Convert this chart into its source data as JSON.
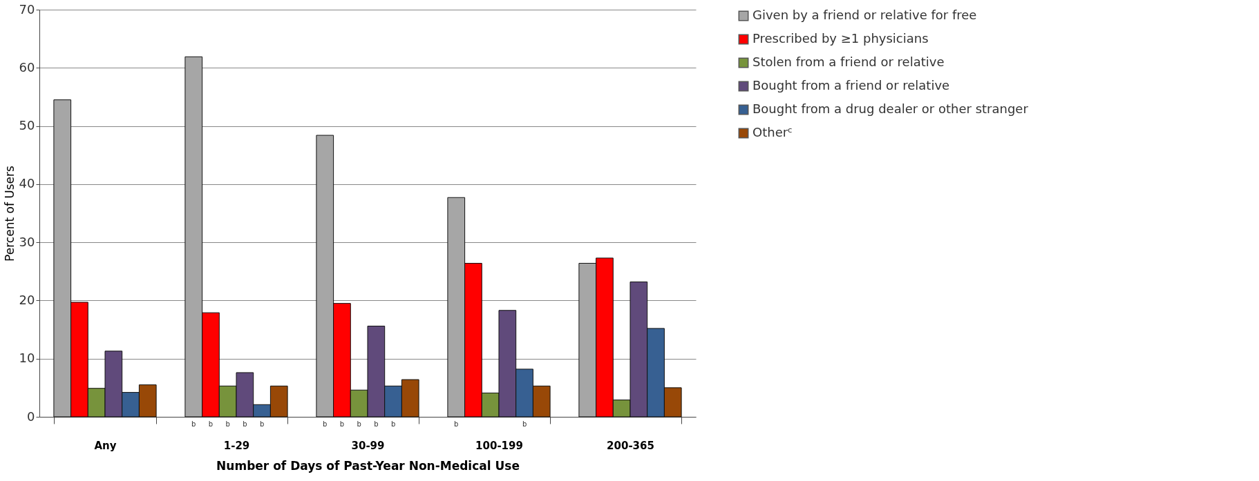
{
  "chart_data": {
    "type": "bar",
    "xlabel": "Number of Days of Past-Year Non-Medical Use",
    "ylabel": "Percent of Users",
    "categories": [
      "Any",
      "1-29",
      "30-99",
      "100-199",
      "200-365"
    ],
    "series": [
      {
        "name": "Given by a friend or relative for free",
        "color": "#a6a6a6",
        "values": [
          54.5,
          61.9,
          48.4,
          37.7,
          26.4
        ],
        "value_labels": [
          null,
          "b",
          "b",
          "b",
          null
        ]
      },
      {
        "name": "Prescribed by ≥1 physicians",
        "color": "#ff0000",
        "values": [
          19.7,
          17.9,
          19.5,
          26.4,
          27.3
        ],
        "value_labels": [
          null,
          "b",
          "b",
          null,
          null
        ]
      },
      {
        "name": "Stolen from a friend or relative",
        "color": "#77933c",
        "values": [
          4.9,
          5.3,
          4.6,
          4.1,
          2.9
        ],
        "value_labels": [
          null,
          "b",
          "b",
          null,
          null
        ]
      },
      {
        "name": "Bought from a friend or relative",
        "color": "#604a7b",
        "values": [
          11.3,
          7.6,
          15.6,
          18.3,
          23.2
        ],
        "value_labels": [
          null,
          "b",
          "b",
          null,
          null
        ]
      },
      {
        "name": "Bought from a drug dealer or other stranger",
        "color": "#376092",
        "values": [
          4.2,
          2.1,
          5.3,
          8.2,
          15.2
        ],
        "value_labels": [
          null,
          "b",
          "b",
          "b",
          null
        ]
      },
      {
        "name": "Otherᶜ",
        "color": "#984807",
        "values": [
          5.5,
          5.3,
          6.4,
          5.3,
          5.0
        ]
      }
    ],
    "ylim": [
      0,
      70
    ],
    "yticks": [
      0,
      10,
      20,
      30,
      40,
      50,
      60,
      70
    ],
    "grid": "y",
    "legend": "right"
  }
}
